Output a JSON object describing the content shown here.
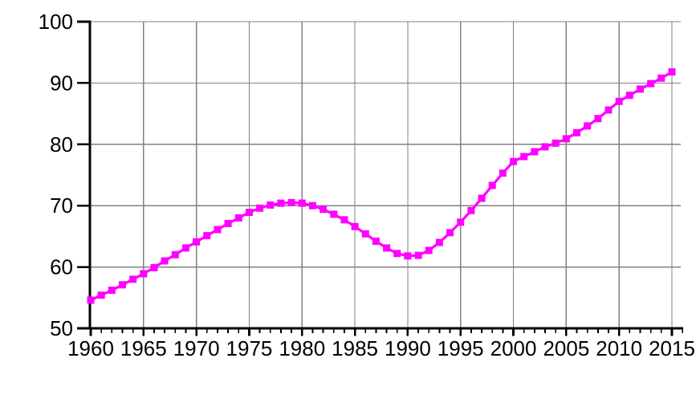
{
  "chart_data": {
    "type": "line",
    "title": "",
    "xlabel": "",
    "ylabel": "",
    "x": [
      1960,
      1961,
      1962,
      1963,
      1964,
      1965,
      1966,
      1967,
      1968,
      1969,
      1970,
      1971,
      1972,
      1973,
      1974,
      1975,
      1976,
      1977,
      1978,
      1979,
      1980,
      1981,
      1982,
      1983,
      1984,
      1985,
      1986,
      1987,
      1988,
      1989,
      1990,
      1991,
      1992,
      1993,
      1994,
      1995,
      1996,
      1997,
      1998,
      1999,
      2000,
      2001,
      2002,
      2003,
      2004,
      2005,
      2006,
      2007,
      2008,
      2009,
      2010,
      2011,
      2012,
      2013,
      2014,
      2015
    ],
    "series": [
      {
        "name": "magenta-square-series",
        "marker": "filled-square",
        "values": [
          54.6,
          55.4,
          56.2,
          57.1,
          58.0,
          58.9,
          59.9,
          61.0,
          62.0,
          63.1,
          64.1,
          65.1,
          66.1,
          67.1,
          68.0,
          68.9,
          69.6,
          70.1,
          70.4,
          70.5,
          70.4,
          70.0,
          69.4,
          68.6,
          67.7,
          66.6,
          65.4,
          64.2,
          63.1,
          62.2,
          61.8,
          61.9,
          62.7,
          64.0,
          65.6,
          67.3,
          69.2,
          71.2,
          73.3,
          75.3,
          77.2,
          78.0,
          78.8,
          79.6,
          80.2,
          80.9,
          81.9,
          83.0,
          84.2,
          85.6,
          87.0,
          88.0,
          89.0,
          89.9,
          90.8,
          91.8
        ]
      }
    ],
    "xlim": [
      1960,
      2015
    ],
    "ylim": [
      50,
      100
    ],
    "x_major_tick_interval": 5,
    "x_minor_tick_interval": 1,
    "x_tick_labels": [
      "1960",
      "1965",
      "1970",
      "1975",
      "1980",
      "1985",
      "1990",
      "1995",
      "2000",
      "2005",
      "2010",
      "2015"
    ],
    "y_ticks": [
      50,
      60,
      70,
      80,
      90,
      100
    ],
    "y_tick_labels": [
      "50",
      "60",
      "70",
      "80",
      "90",
      "100"
    ],
    "grid": true,
    "legend": false,
    "colors": {
      "line": "#FF00FF",
      "grid": "#808080",
      "axis": "#000000",
      "text": "#000000",
      "background": "#FFFFFF"
    }
  }
}
